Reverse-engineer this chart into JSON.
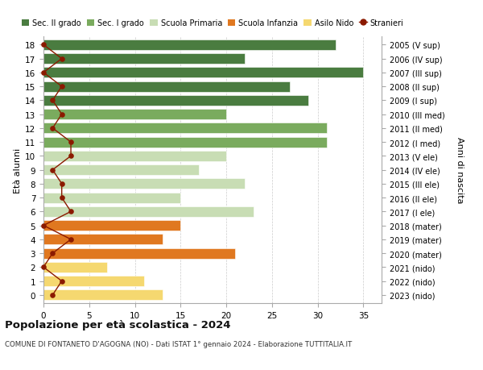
{
  "ages": [
    18,
    17,
    16,
    15,
    14,
    13,
    12,
    11,
    10,
    9,
    8,
    7,
    6,
    5,
    4,
    3,
    2,
    1,
    0
  ],
  "years": [
    "2005 (V sup)",
    "2006 (IV sup)",
    "2007 (III sup)",
    "2008 (II sup)",
    "2009 (I sup)",
    "2010 (III med)",
    "2011 (II med)",
    "2012 (I med)",
    "2013 (V ele)",
    "2014 (IV ele)",
    "2015 (III ele)",
    "2016 (II ele)",
    "2017 (I ele)",
    "2018 (mater)",
    "2019 (mater)",
    "2020 (mater)",
    "2021 (nido)",
    "2022 (nido)",
    "2023 (nido)"
  ],
  "bar_values": [
    32,
    22,
    35,
    27,
    29,
    20,
    31,
    31,
    20,
    17,
    22,
    15,
    23,
    15,
    13,
    21,
    7,
    11,
    13
  ],
  "bar_colors": [
    "#4a7c40",
    "#4a7c40",
    "#4a7c40",
    "#4a7c40",
    "#4a7c40",
    "#7aab5e",
    "#7aab5e",
    "#7aab5e",
    "#c8ddb4",
    "#c8ddb4",
    "#c8ddb4",
    "#c8ddb4",
    "#c8ddb4",
    "#e07820",
    "#e07820",
    "#e07820",
    "#f5d870",
    "#f5d870",
    "#f5d870"
  ],
  "stranieri": [
    0,
    2,
    0,
    2,
    1,
    2,
    1,
    3,
    3,
    1,
    2,
    2,
    3,
    0,
    3,
    1,
    0,
    2,
    1
  ],
  "stranieri_color": "#8b1a00",
  "legend_labels": [
    "Sec. II grado",
    "Sec. I grado",
    "Scuola Primaria",
    "Scuola Infanzia",
    "Asilo Nido",
    "Stranieri"
  ],
  "legend_colors": [
    "#4a7c40",
    "#7aab5e",
    "#c8ddb4",
    "#e07820",
    "#f5d870",
    "#8b1a00"
  ],
  "title": "Popolazione per età scolastica - 2024",
  "subtitle": "COMUNE DI FONTANETO D'AGOGNA (NO) - Dati ISTAT 1° gennaio 2024 - Elaborazione TUTTITALIA.IT",
  "xlabel_left": "Età alunni",
  "xlabel_right": "Anni di nascita",
  "xlim": [
    0,
    37
  ],
  "xticks": [
    0,
    5,
    10,
    15,
    20,
    25,
    30,
    35
  ],
  "bg_color": "#ffffff",
  "bar_height": 0.75,
  "grid_color": "#cccccc"
}
